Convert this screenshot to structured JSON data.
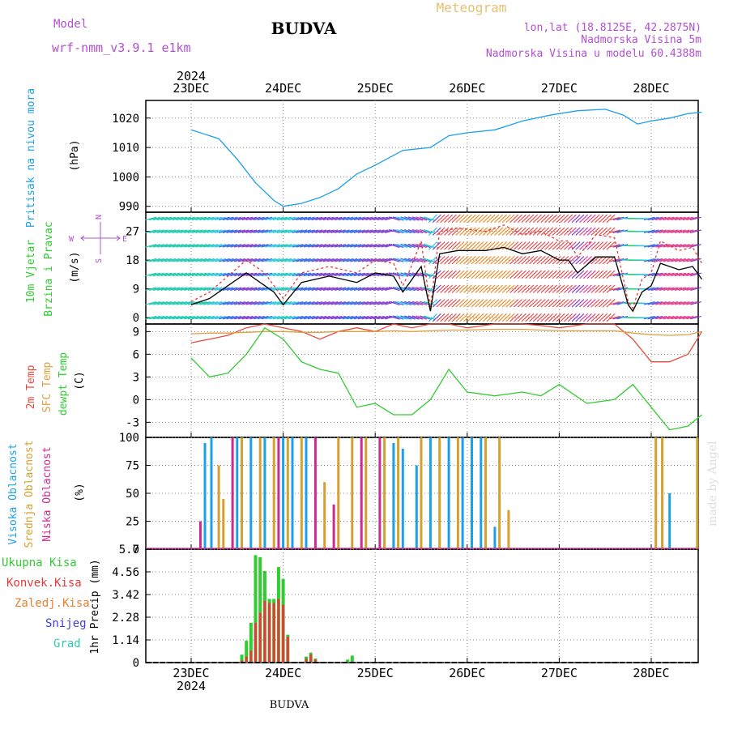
{
  "header": {
    "model_label": "Model",
    "model_name": "wrf-nmm_v3.9.1 e1km",
    "station": "BUDVA",
    "title": "Meteogram",
    "lonlat": "lon,lat (18.8125E, 42.2875N)",
    "altitude": "Nadmorska Visina 5m",
    "model_altitude": "Nadmorska Visina u modelu 60.4388m",
    "footer": "BUDVA",
    "watermark": "made by Angel"
  },
  "colors": {
    "pressure": "#1ca0e8",
    "wind_speed": "#000000",
    "wind_gust": "#e83838",
    "temp_2m": "#e84a3a",
    "temp_sfc": "#e0a040",
    "dewpoint": "#30cc30",
    "cloud_high": "#1ca0e8",
    "cloud_mid": "#d4a030",
    "cloud_low": "#cc2a90",
    "precip_total": "#30cc30",
    "precip_conv": "#e83838",
    "precip_frozen": "#e88030",
    "snow": "#4040e0",
    "graupel": "#30c8b0",
    "grid": "#888888",
    "title_orange": "#e8c070",
    "purple": "#b050d0"
  },
  "time_axis": {
    "year": "2024",
    "days": [
      "23DEC",
      "24DEC",
      "25DEC",
      "26DEC",
      "27DEC",
      "28DEC"
    ]
  },
  "chart_data": [
    {
      "type": "line",
      "id": "pressure",
      "ylabel": "Pritisak na nivou mora",
      "unit": "(hPa)",
      "yticks": [
        "990",
        "1000",
        "1010",
        "1020"
      ],
      "ylim": [
        988,
        1026
      ],
      "x_days": [
        0,
        0.3,
        0.5,
        0.7,
        0.9,
        1.0,
        1.2,
        1.4,
        1.6,
        1.8,
        2.0,
        2.3,
        2.6,
        2.8,
        3.0,
        3.3,
        3.6,
        3.9,
        4.2,
        4.5,
        4.7,
        4.85,
        5.0,
        5.2,
        5.4,
        5.55
      ],
      "values": [
        1016,
        1013,
        1006,
        998,
        992,
        990,
        991,
        993,
        996,
        1001,
        1004,
        1009,
        1010,
        1014,
        1015,
        1016,
        1019,
        1021,
        1022.5,
        1023,
        1021,
        1018,
        1019,
        1020,
        1021.5,
        1022
      ]
    },
    {
      "type": "line",
      "id": "wind",
      "ylabel": "10m Vjetar",
      "ylabel2": "Brzina i Pravac",
      "unit": "(m/s)",
      "compass": [
        "S",
        "N",
        "E",
        "W"
      ],
      "yticks": [
        "0",
        "9",
        "18",
        "27"
      ],
      "ylim": [
        -2,
        33
      ],
      "x_days": [
        0,
        0.2,
        0.4,
        0.6,
        0.8,
        0.9,
        1.0,
        1.2,
        1.5,
        1.8,
        2.0,
        2.2,
        2.3,
        2.35,
        2.5,
        2.6,
        2.7,
        2.9,
        3.2,
        3.4,
        3.6,
        3.8,
        4.0,
        4.1,
        4.2,
        4.4,
        4.6,
        4.75,
        4.8,
        4.9,
        5.0,
        5.1,
        5.3,
        5.45,
        5.55
      ],
      "values": [
        4,
        6,
        10,
        14,
        10,
        8,
        4,
        11,
        13,
        11,
        14,
        13,
        8,
        10,
        16,
        2,
        20,
        21,
        21,
        22,
        20,
        21,
        18,
        18,
        14,
        19,
        19,
        4,
        2,
        8,
        10,
        17,
        15,
        16,
        12
      ],
      "gust_values": [
        5,
        8,
        13,
        18,
        14,
        10,
        6,
        14,
        16,
        14,
        18,
        17,
        10,
        13,
        24,
        3,
        27,
        28,
        27,
        29,
        26,
        27,
        24,
        24,
        19,
        26,
        25,
        5,
        3,
        12,
        14,
        24,
        21,
        22,
        17
      ]
    },
    {
      "type": "line",
      "id": "temperature",
      "ylabels": [
        "2m Temp",
        "SFC Temp",
        "dewpt Temp"
      ],
      "unit": "(C)",
      "yticks": [
        "9",
        "6",
        "3",
        "0",
        "-3"
      ],
      "ylim": [
        -5,
        10
      ],
      "x_days": [
        0,
        0.2,
        0.4,
        0.6,
        0.8,
        1.0,
        1.2,
        1.4,
        1.6,
        1.8,
        2.0,
        2.2,
        2.4,
        2.6,
        2.8,
        3.0,
        3.3,
        3.6,
        3.8,
        4.0,
        4.3,
        4.6,
        4.8,
        5.0,
        5.2,
        5.4,
        5.55
      ],
      "series": [
        {
          "name": "2m Temp",
          "values": [
            7.5,
            8,
            8.5,
            9.5,
            10,
            9.5,
            9,
            8,
            9,
            9.5,
            9,
            10,
            9.5,
            10,
            10,
            9.5,
            10,
            10,
            9.8,
            9.5,
            10,
            10,
            8,
            5,
            5,
            6,
            9
          ]
        },
        {
          "name": "SFC Temp",
          "values": [
            8.7,
            8.8,
            8.8,
            8.9,
            9,
            9,
            8.9,
            8.9,
            9,
            9,
            9,
            9.1,
            9,
            9.1,
            9.2,
            9.2,
            9.3,
            9.3,
            9.2,
            9.1,
            9.1,
            9.1,
            8.8,
            8.6,
            8.5,
            8.6,
            9
          ]
        },
        {
          "name": "dewpt Temp",
          "values": [
            5.5,
            3,
            3.5,
            6,
            9.5,
            8,
            5,
            4,
            3.5,
            -1,
            -0.5,
            -2,
            -2,
            0,
            4,
            1,
            0.5,
            1,
            0.5,
            2,
            -0.5,
            0,
            2,
            -1,
            -4,
            -3.5,
            -2
          ]
        }
      ]
    },
    {
      "type": "bar",
      "id": "clouds",
      "ylabels": [
        "Visoka Oblacnost",
        "Srednja Oblacnost",
        "Niska Oblacnost"
      ],
      "unit": "(%)",
      "yticks": [
        "0",
        "25",
        "50",
        "75",
        "100"
      ],
      "ylim": [
        0,
        100
      ],
      "series": [
        {
          "name": "Visoka Oblacnost",
          "points": [
            [
              0.15,
              95
            ],
            [
              0.22,
              100
            ],
            [
              0.5,
              100
            ],
            [
              0.65,
              100
            ],
            [
              0.8,
              100
            ],
            [
              1.0,
              100
            ],
            [
              1.1,
              100
            ],
            [
              1.25,
              100
            ],
            [
              2.2,
              95
            ],
            [
              2.3,
              90
            ],
            [
              2.45,
              75
            ],
            [
              2.6,
              100
            ],
            [
              2.8,
              100
            ],
            [
              2.95,
              100
            ],
            [
              3.05,
              100
            ],
            [
              3.15,
              100
            ],
            [
              3.3,
              20
            ],
            [
              5.2,
              50
            ]
          ]
        },
        {
          "name": "Srednja Oblacnost",
          "points": [
            [
              0.3,
              75
            ],
            [
              0.35,
              45
            ],
            [
              0.55,
              100
            ],
            [
              0.75,
              100
            ],
            [
              0.9,
              100
            ],
            [
              1.05,
              100
            ],
            [
              1.2,
              100
            ],
            [
              1.45,
              60
            ],
            [
              1.6,
              100
            ],
            [
              1.75,
              100
            ],
            [
              1.9,
              100
            ],
            [
              2.1,
              100
            ],
            [
              2.25,
              100
            ],
            [
              2.5,
              100
            ],
            [
              2.7,
              100
            ],
            [
              2.9,
              100
            ],
            [
              3.2,
              100
            ],
            [
              3.35,
              100
            ],
            [
              3.45,
              35
            ],
            [
              5.05,
              100
            ],
            [
              5.12,
              100
            ],
            [
              5.5,
              100
            ]
          ]
        },
        {
          "name": "Niska Oblacnost",
          "points": [
            [
              0.1,
              25
            ],
            [
              0.45,
              100
            ],
            [
              0.95,
              100
            ],
            [
              1.35,
              100
            ],
            [
              1.55,
              40
            ],
            [
              1.85,
              100
            ],
            [
              2.05,
              100
            ]
          ]
        }
      ]
    },
    {
      "type": "bar",
      "id": "precip",
      "ylabels": [
        "Ukupna Kisa",
        "Konvek.Kisa",
        "Zaledj.Kisa",
        "Snijeg",
        "Grad"
      ],
      "unit": "1hr Precip (mm)",
      "yticks": [
        "0",
        "1.14",
        "2.28",
        "3.42",
        "4.56",
        "5.7"
      ],
      "ylim": [
        0,
        5.7
      ],
      "x_days": [
        0.55,
        0.6,
        0.65,
        0.7,
        0.75,
        0.8,
        0.85,
        0.9,
        0.95,
        1.0,
        1.05,
        1.25,
        1.3,
        1.35,
        1.7,
        1.75
      ],
      "series": [
        {
          "name": "Ukupna Kisa",
          "values": [
            0.4,
            1.1,
            2.0,
            5.4,
            5.3,
            4.6,
            3.2,
            3.2,
            4.8,
            4.2,
            1.4,
            0.3,
            0.5,
            0.2,
            0.15,
            0.35
          ]
        },
        {
          "name": "Konvek.Kisa",
          "values": [
            0.1,
            0.3,
            0.6,
            2.0,
            2.5,
            3.1,
            3.0,
            3.0,
            3.2,
            2.9,
            1.3,
            0.2,
            0.4,
            0.15,
            0.0,
            0.0
          ]
        }
      ]
    }
  ]
}
